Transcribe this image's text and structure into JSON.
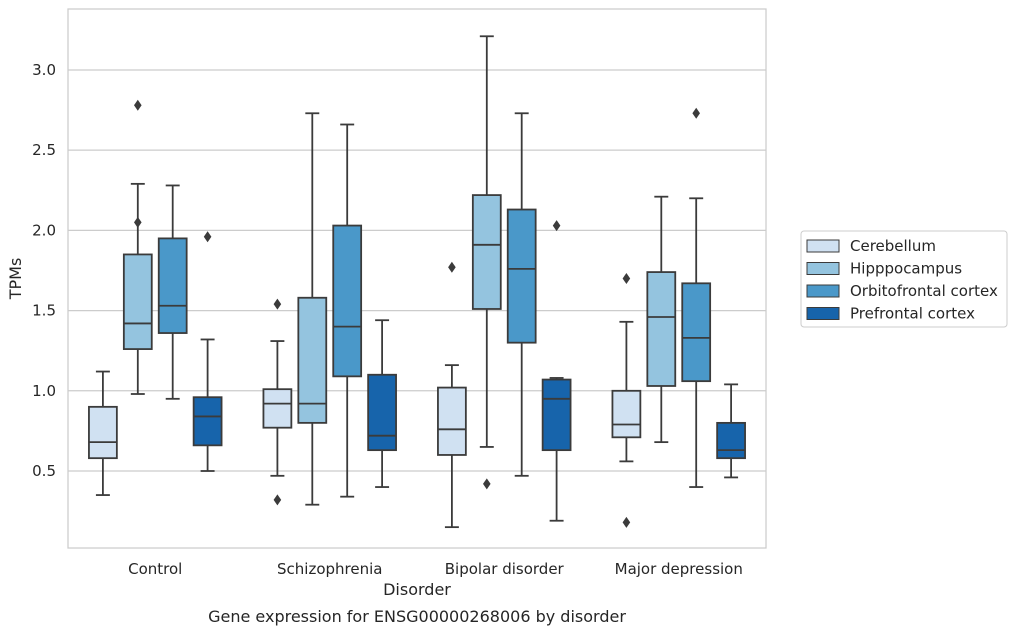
{
  "chart_data": {
    "type": "box",
    "xlabel": "Disorder",
    "ylabel": "TPMs",
    "caption": "Gene expression for ENSG00000268006 by disorder",
    "ylim": [
      0.02,
      3.38
    ],
    "yticks": [
      "0.5",
      "1.0",
      "1.5",
      "2.0",
      "2.5",
      "3.0"
    ],
    "grid": "horizontal",
    "legend_position": "right",
    "categories": [
      "Control",
      "Schizophrenia",
      "Bipolar disorder",
      "Major depression"
    ],
    "series": [
      {
        "name": "Cerebellum",
        "color": "#d0e1f2",
        "boxes": [
          {
            "whislo": 0.35,
            "q1": 0.58,
            "med": 0.68,
            "q3": 0.9,
            "whishi": 1.12,
            "fliers": []
          },
          {
            "whislo": 0.47,
            "q1": 0.77,
            "med": 0.92,
            "q3": 1.01,
            "whishi": 1.31,
            "fliers": [
              0.32,
              1.54
            ]
          },
          {
            "whislo": 0.15,
            "q1": 0.6,
            "med": 0.76,
            "q3": 1.02,
            "whishi": 1.16,
            "fliers": [
              1.77
            ]
          },
          {
            "whislo": 0.56,
            "q1": 0.71,
            "med": 0.79,
            "q3": 1.0,
            "whishi": 1.43,
            "fliers": [
              0.18,
              1.7
            ]
          }
        ]
      },
      {
        "name": "Hipppocampus",
        "color": "#94c4df",
        "boxes": [
          {
            "whislo": 0.98,
            "q1": 1.26,
            "med": 1.42,
            "q3": 1.85,
            "whishi": 2.29,
            "fliers": [
              2.05,
              2.78
            ]
          },
          {
            "whislo": 0.29,
            "q1": 0.8,
            "med": 0.92,
            "q3": 1.58,
            "whishi": 2.73,
            "fliers": []
          },
          {
            "whislo": 0.65,
            "q1": 1.51,
            "med": 1.91,
            "q3": 2.22,
            "whishi": 3.21,
            "fliers": [
              0.42
            ]
          },
          {
            "whislo": 0.68,
            "q1": 1.03,
            "med": 1.46,
            "q3": 1.74,
            "whishi": 2.21,
            "fliers": []
          }
        ]
      },
      {
        "name": "Orbitofrontal cortex",
        "color": "#4a98c9",
        "boxes": [
          {
            "whislo": 0.95,
            "q1": 1.36,
            "med": 1.53,
            "q3": 1.95,
            "whishi": 2.28,
            "fliers": []
          },
          {
            "whislo": 0.34,
            "q1": 1.09,
            "med": 1.4,
            "q3": 2.03,
            "whishi": 2.66,
            "fliers": []
          },
          {
            "whislo": 0.47,
            "q1": 1.3,
            "med": 1.76,
            "q3": 2.13,
            "whishi": 2.73,
            "fliers": []
          },
          {
            "whislo": 0.4,
            "q1": 1.06,
            "med": 1.33,
            "q3": 1.67,
            "whishi": 2.2,
            "fliers": [
              2.73
            ]
          }
        ]
      },
      {
        "name": "Prefrontal cortex",
        "color": "#1764ab",
        "boxes": [
          {
            "whislo": 0.5,
            "q1": 0.66,
            "med": 0.84,
            "q3": 0.96,
            "whishi": 1.32,
            "fliers": [
              1.96
            ]
          },
          {
            "whislo": 0.4,
            "q1": 0.63,
            "med": 0.72,
            "q3": 1.1,
            "whishi": 1.44,
            "fliers": []
          },
          {
            "whislo": 0.19,
            "q1": 0.63,
            "med": 0.95,
            "q3": 1.07,
            "whishi": 1.08,
            "fliers": [
              2.03
            ]
          },
          {
            "whislo": 0.46,
            "q1": 0.58,
            "med": 0.63,
            "q3": 0.8,
            "whishi": 1.04,
            "fliers": []
          }
        ]
      }
    ]
  }
}
